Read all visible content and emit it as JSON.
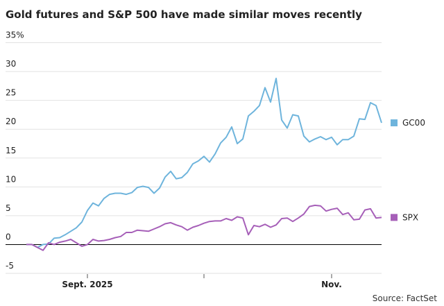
{
  "chart_data": {
    "type": "line",
    "title": "Gold futures and S&P 500 have made similar moves recently",
    "source": "Source: FactSet",
    "categories": [
      null,
      null,
      null,
      null,
      null,
      null,
      null,
      null,
      null,
      null,
      null,
      "Sept. 2025",
      null,
      null,
      null,
      null,
      null,
      null,
      null,
      null,
      null,
      null,
      null,
      null,
      null,
      null,
      null,
      null,
      null,
      null,
      null,
      null,
      null,
      null,
      null,
      null,
      null,
      null,
      null,
      null,
      null,
      null,
      null,
      null,
      null,
      null,
      null,
      null,
      null,
      null,
      null,
      null,
      null,
      null,
      null,
      "Nov.",
      null,
      null,
      null,
      null,
      null,
      null,
      null,
      null,
      null
    ],
    "xticks": [
      11,
      32,
      55
    ],
    "series": [
      {
        "name": "GC00",
        "color": "#6eb4dc",
        "values": [
          0,
          0,
          -0.5,
          0,
          0.1,
          1.1,
          1.2,
          1.7,
          2.3,
          2.9,
          3.9,
          5.9,
          7.2,
          6.7,
          8.0,
          8.7,
          8.9,
          8.9,
          8.7,
          9.0,
          9.9,
          10.1,
          9.9,
          8.9,
          9.8,
          11.7,
          12.7,
          11.4,
          11.6,
          12.5,
          14.0,
          14.5,
          15.3,
          14.3,
          15.7,
          17.6,
          18.6,
          20.4,
          17.5,
          18.3,
          22.3,
          23.1,
          24.1,
          27.2,
          24.7,
          28.8,
          21.6,
          20.2,
          22.5,
          22.3,
          18.8,
          17.8,
          18.3,
          18.7,
          18.2,
          18.6,
          17.3,
          18.2,
          18.2,
          18.8,
          21.8,
          21.7,
          24.6,
          24.1,
          21.1
        ]
      },
      {
        "name": "SPX",
        "color": "#a65fb8",
        "values": [
          0,
          0,
          -0.5,
          -1,
          0.3,
          0,
          0.4,
          0.6,
          0.9,
          0.3,
          -0.3,
          0,
          0.9,
          0.6,
          0.7,
          0.9,
          1.2,
          1.4,
          2.1,
          2.1,
          2.5,
          2.4,
          2.3,
          2.7,
          3.1,
          3.6,
          3.8,
          3.4,
          3.1,
          2.5,
          3.0,
          3.3,
          3.7,
          4.0,
          4.1,
          4.1,
          4.5,
          4.2,
          4.8,
          4.6,
          1.7,
          3.3,
          3.1,
          3.5,
          3.0,
          3.4,
          4.5,
          4.6,
          4.0,
          4.6,
          5.3,
          6.6,
          6.8,
          6.7,
          5.8,
          6.1,
          6.3,
          5.2,
          5.5,
          4.3,
          4.4,
          6.0,
          6.2,
          4.6,
          4.7
        ]
      }
    ],
    "ylim": [
      -5,
      35
    ],
    "yticks": [
      {
        "value": 35,
        "label": "35%"
      },
      30,
      25,
      20,
      15,
      10,
      5,
      0,
      -5
    ],
    "grid": true
  }
}
